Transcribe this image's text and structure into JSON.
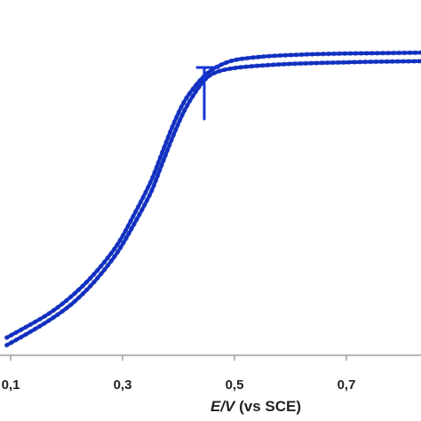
{
  "chart_data": {
    "type": "line",
    "title": "",
    "xlabel_italic": "E/V",
    "xlabel_rest": " (vs SCE)",
    "ylabel": "",
    "xlim": [
      0.1,
      0.87
    ],
    "ylim": [
      0,
      1.0
    ],
    "x_ticks": [
      {
        "value": 0.1,
        "label": "0,1"
      },
      {
        "value": 0.3,
        "label": "0,3"
      },
      {
        "value": 0.5,
        "label": "0,5"
      },
      {
        "value": 0.7,
        "label": "0,7"
      }
    ],
    "grid": false,
    "legend": "none",
    "colors": {
      "series": "#1436d6",
      "axis": "#8c8c8c",
      "text": "#222222"
    },
    "series": [
      {
        "x": [
          0.093,
          0.13,
          0.17,
          0.21,
          0.25,
          0.29,
          0.32,
          0.35,
          0.37,
          0.39,
          0.41,
          0.43,
          0.45,
          0.47,
          0.5,
          0.55,
          0.6,
          0.65,
          0.7,
          0.75,
          0.8,
          0.85,
          0.87
        ],
        "y": [
          0.018,
          0.055,
          0.098,
          0.15,
          0.22,
          0.31,
          0.4,
          0.5,
          0.59,
          0.68,
          0.76,
          0.82,
          0.865,
          0.885,
          0.897,
          0.905,
          0.91,
          0.913,
          0.915,
          0.917,
          0.918,
          0.919,
          0.919
        ]
      },
      {
        "x": [
          0.093,
          0.13,
          0.17,
          0.21,
          0.25,
          0.29,
          0.32,
          0.35,
          0.37,
          0.39,
          0.41,
          0.43,
          0.45,
          0.47,
          0.5,
          0.55,
          0.6,
          0.65,
          0.7,
          0.75,
          0.8,
          0.85,
          0.87
        ],
        "y": [
          0.042,
          0.078,
          0.12,
          0.175,
          0.245,
          0.335,
          0.43,
          0.535,
          0.625,
          0.715,
          0.79,
          0.84,
          0.878,
          0.902,
          0.922,
          0.933,
          0.938,
          0.941,
          0.943,
          0.944,
          0.945,
          0.946,
          0.946
        ]
      }
    ]
  }
}
